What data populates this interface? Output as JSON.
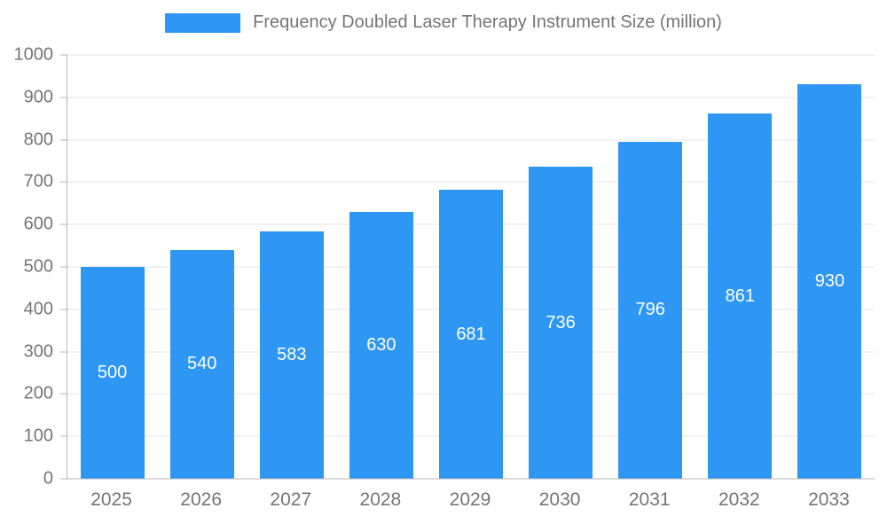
{
  "legend": {
    "label": "Frequency Doubled Laser Therapy Instrument Size (million)"
  },
  "chart_data": {
    "type": "bar",
    "title": "Frequency Doubled Laser Therapy Instrument Size (million)",
    "categories": [
      "2025",
      "2026",
      "2027",
      "2028",
      "2029",
      "2030",
      "2031",
      "2032",
      "2033"
    ],
    "values": [
      500,
      540,
      583,
      630,
      681,
      736,
      796,
      861,
      930
    ],
    "xlabel": "",
    "ylabel": "",
    "ylim": [
      0,
      1000
    ],
    "y_ticks": [
      0,
      100,
      200,
      300,
      400,
      500,
      600,
      700,
      800,
      900,
      1000
    ],
    "grid": true,
    "legend_position": "top",
    "bar_color": "#2E96F3",
    "value_label_color": "#ffffff",
    "axis_text_color": "#757575"
  }
}
